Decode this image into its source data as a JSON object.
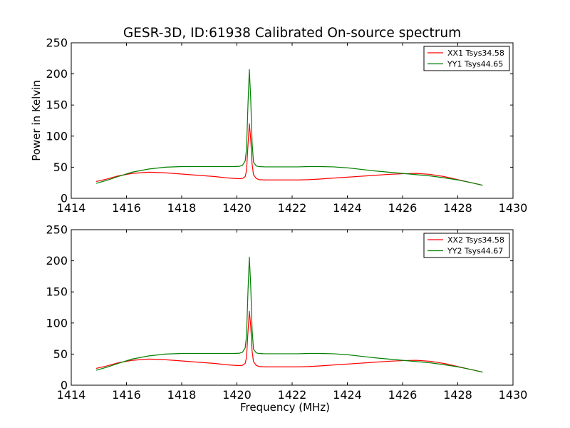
{
  "figure": {
    "title": "GESR-3D, ID:61938 Calibrated On-source spectrum"
  },
  "chart_data": [
    {
      "type": "line",
      "title": "",
      "xlabel": "",
      "ylabel": "Power in Kelvin",
      "xlim": [
        1414,
        1430
      ],
      "ylim": [
        0,
        250
      ],
      "xticks": [
        "1414",
        "1416",
        "1418",
        "1420",
        "1422",
        "1424",
        "1426",
        "1428",
        "1430"
      ],
      "yticks": [
        "0",
        "50",
        "100",
        "150",
        "200",
        "250"
      ],
      "grid": false,
      "legend_position": "top-right",
      "series": [
        {
          "name": "XX1 Tsys34.58",
          "color": "#ff0000",
          "x": [
            1414.9,
            1415.3,
            1415.7,
            1416.2,
            1416.8,
            1417.4,
            1418.0,
            1418.6,
            1419.2,
            1419.6,
            1419.9,
            1420.1,
            1420.2,
            1420.3,
            1420.35,
            1420.4,
            1420.45,
            1420.5,
            1420.55,
            1420.6,
            1420.7,
            1420.8,
            1421.0,
            1421.3,
            1421.8,
            1422.2,
            1422.6,
            1423.0,
            1423.5,
            1424.0,
            1424.5,
            1425.0,
            1425.5,
            1426.0,
            1426.5,
            1427.0,
            1427.5,
            1428.0,
            1428.5,
            1428.9
          ],
          "values": [
            27,
            31,
            36,
            40,
            42,
            41,
            39,
            37,
            35,
            33,
            32,
            31.5,
            32,
            35,
            45,
            85,
            120,
            95,
            55,
            38,
            32,
            30,
            29.5,
            29.5,
            29.5,
            29.5,
            30,
            31,
            32.5,
            34,
            35.5,
            37,
            38.5,
            39.5,
            40,
            38.5,
            35,
            30,
            25,
            21
          ]
        },
        {
          "name": "YY1 Tsys44.65",
          "color": "#008000",
          "x": [
            1414.9,
            1415.3,
            1415.7,
            1416.2,
            1416.8,
            1417.4,
            1418.0,
            1418.6,
            1419.2,
            1419.6,
            1419.9,
            1420.1,
            1420.2,
            1420.3,
            1420.35,
            1420.4,
            1420.45,
            1420.5,
            1420.55,
            1420.6,
            1420.7,
            1420.8,
            1421.0,
            1421.3,
            1421.8,
            1422.2,
            1422.6,
            1423.0,
            1423.5,
            1424.0,
            1424.5,
            1425.0,
            1425.5,
            1426.0,
            1426.5,
            1427.0,
            1427.5,
            1428.0,
            1428.5,
            1428.9
          ],
          "values": [
            24,
            29,
            35,
            42,
            47,
            50,
            51,
            51,
            51,
            51,
            51,
            51.5,
            53,
            60,
            80,
            150,
            207,
            160,
            90,
            58,
            52,
            51,
            50.5,
            50.5,
            50.5,
            50.5,
            51,
            51,
            50.5,
            49,
            46.5,
            44,
            42,
            40,
            38,
            36,
            33,
            29.5,
            25,
            21
          ]
        }
      ]
    },
    {
      "type": "line",
      "title": "",
      "xlabel": "Frequency (MHz)",
      "ylabel": "",
      "xlim": [
        1414,
        1430
      ],
      "ylim": [
        0,
        250
      ],
      "xticks": [
        "1414",
        "1416",
        "1418",
        "1420",
        "1422",
        "1424",
        "1426",
        "1428",
        "1430"
      ],
      "yticks": [
        "0",
        "50",
        "100",
        "150",
        "200",
        "250"
      ],
      "grid": false,
      "legend_position": "top-right",
      "series": [
        {
          "name": "XX2 Tsys34.58",
          "color": "#ff0000",
          "x": [
            1414.9,
            1415.3,
            1415.7,
            1416.2,
            1416.8,
            1417.4,
            1418.0,
            1418.6,
            1419.2,
            1419.6,
            1419.9,
            1420.1,
            1420.2,
            1420.3,
            1420.35,
            1420.4,
            1420.45,
            1420.5,
            1420.55,
            1420.6,
            1420.7,
            1420.8,
            1421.0,
            1421.3,
            1421.8,
            1422.2,
            1422.6,
            1423.0,
            1423.5,
            1424.0,
            1424.5,
            1425.0,
            1425.5,
            1426.0,
            1426.5,
            1427.0,
            1427.5,
            1428.0,
            1428.5,
            1428.9
          ],
          "values": [
            27,
            31,
            36,
            40,
            42,
            41,
            39,
            37,
            35,
            33,
            32,
            31.5,
            32,
            35,
            45,
            85,
            119,
            95,
            55,
            38,
            32,
            30,
            29.5,
            29.5,
            29.5,
            29.5,
            30,
            31,
            32.5,
            34,
            35.5,
            37,
            38.5,
            39.5,
            40,
            38.5,
            35,
            30,
            25,
            21
          ]
        },
        {
          "name": "YY2 Tsys44.67",
          "color": "#008000",
          "x": [
            1414.9,
            1415.3,
            1415.7,
            1416.2,
            1416.8,
            1417.4,
            1418.0,
            1418.6,
            1419.2,
            1419.6,
            1419.9,
            1420.1,
            1420.2,
            1420.3,
            1420.35,
            1420.4,
            1420.45,
            1420.5,
            1420.55,
            1420.6,
            1420.7,
            1420.8,
            1421.0,
            1421.3,
            1421.8,
            1422.2,
            1422.6,
            1423.0,
            1423.5,
            1424.0,
            1424.5,
            1425.0,
            1425.5,
            1426.0,
            1426.5,
            1427.0,
            1427.5,
            1428.0,
            1428.5,
            1428.9
          ],
          "values": [
            24,
            29,
            35,
            42,
            47,
            50,
            51,
            51,
            51,
            51,
            51,
            51.5,
            53,
            60,
            80,
            150,
            206,
            160,
            90,
            58,
            52,
            51,
            50.5,
            50.5,
            50.5,
            50.5,
            51,
            51,
            50.5,
            49,
            46.5,
            44,
            42,
            40,
            38,
            36,
            33,
            29.5,
            25,
            21
          ]
        }
      ]
    }
  ]
}
